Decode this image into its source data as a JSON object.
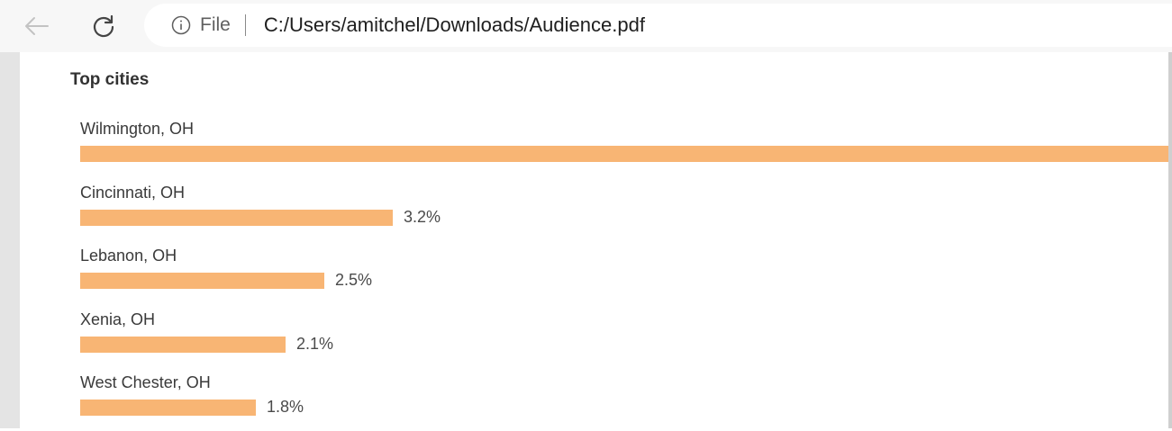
{
  "browser": {
    "back_icon": "arrow-left-icon",
    "reload_icon": "reload-icon",
    "info_icon": "info-circle-icon",
    "scheme_label": "File",
    "url": "C:/Users/amitchel/Downloads/Audience.pdf"
  },
  "report": {
    "section_title": "Top cities",
    "bar_color": "#f8b574",
    "cities": [
      {
        "name": "Wilmington, OH",
        "value": null,
        "label": ""
      },
      {
        "name": "Cincinnati, OH",
        "value": 3.2,
        "label": "3.2%"
      },
      {
        "name": "Lebanon, OH",
        "value": 2.5,
        "label": "2.5%"
      },
      {
        "name": "Xenia, OH",
        "value": 2.1,
        "label": "2.1%"
      },
      {
        "name": "West Chester, OH",
        "value": 1.8,
        "label": "1.8%"
      }
    ]
  }
}
